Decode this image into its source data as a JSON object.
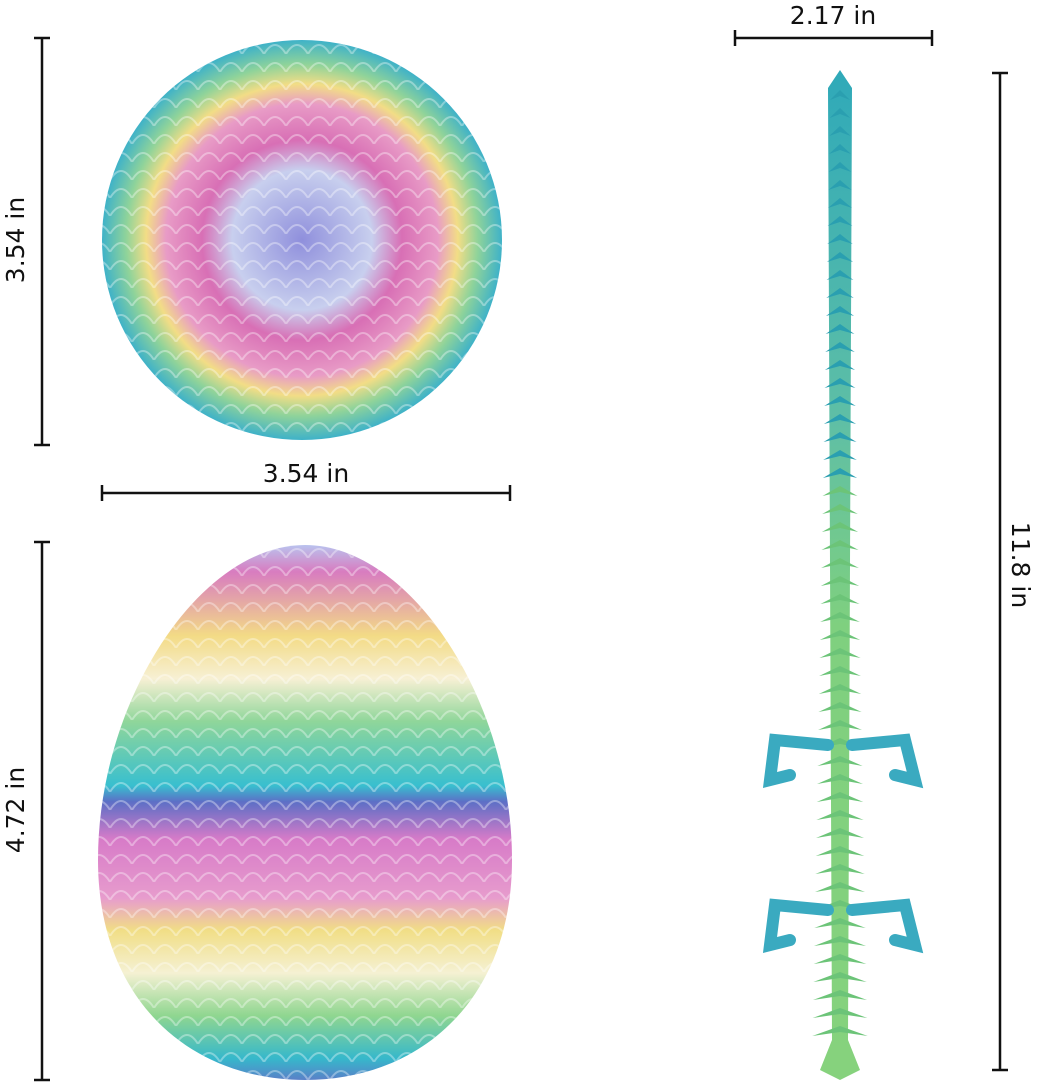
{
  "dimensions": {
    "egg_top_height": "3.54 in",
    "egg_top_width": "3.54 in",
    "egg_side_height": "4.72 in",
    "dragon_width": "2.17 in",
    "dragon_length": "11.8 in"
  },
  "colors": {
    "pink": "#d56fb8",
    "yellow": "#f1dc85",
    "green": "#86d18b",
    "teal": "#3fb7c6",
    "lavender": "#a9b2e8",
    "line": "#111111"
  }
}
